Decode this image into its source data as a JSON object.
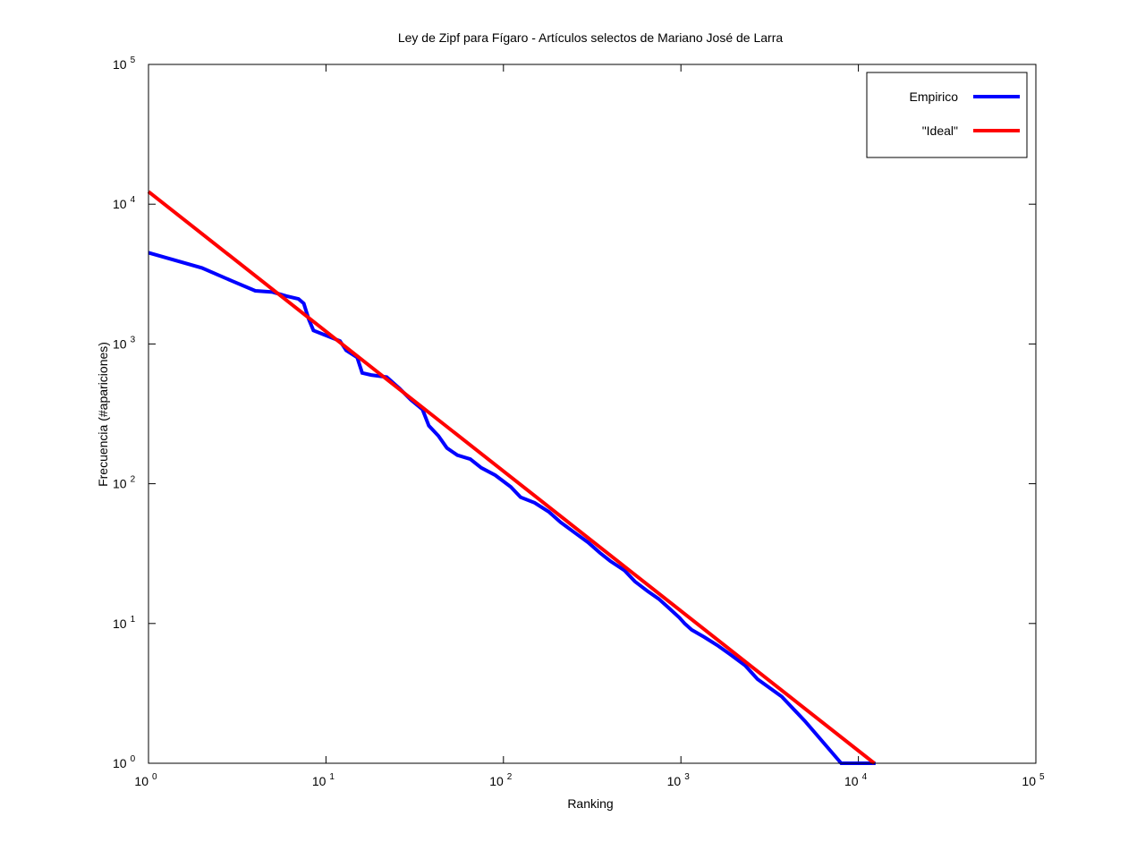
{
  "chart_data": {
    "type": "line",
    "title": "Ley de Zipf para Fígaro - Artículos selectos de Mariano José de Larra",
    "xlabel": "Ranking",
    "ylabel": "Frecuencia (#apariciones)",
    "xscale": "log",
    "yscale": "log",
    "xlim": [
      1,
      100000
    ],
    "ylim": [
      1,
      100000
    ],
    "x_ticks": [
      {
        "base": "10",
        "exp": "0"
      },
      {
        "base": "10",
        "exp": "1"
      },
      {
        "base": "10",
        "exp": "2"
      },
      {
        "base": "10",
        "exp": "3"
      },
      {
        "base": "10",
        "exp": "4"
      },
      {
        "base": "10",
        "exp": "5"
      }
    ],
    "y_ticks": [
      {
        "base": "10",
        "exp": "0"
      },
      {
        "base": "10",
        "exp": "1"
      },
      {
        "base": "10",
        "exp": "2"
      },
      {
        "base": "10",
        "exp": "3"
      },
      {
        "base": "10",
        "exp": "4"
      },
      {
        "base": "10",
        "exp": "5"
      }
    ],
    "legend_position": "top-right",
    "series": [
      {
        "name": "Empirico",
        "color": "#0000ff",
        "step": true,
        "points": [
          [
            1,
            4500
          ],
          [
            2,
            3500
          ],
          [
            3,
            2800
          ],
          [
            4,
            2400
          ],
          [
            5,
            2350
          ],
          [
            6,
            2200
          ],
          [
            7,
            2100
          ],
          [
            7.5,
            1950
          ],
          [
            8,
            1500
          ],
          [
            8.5,
            1250
          ],
          [
            10,
            1150
          ],
          [
            12,
            1050
          ],
          [
            13,
            900
          ],
          [
            15,
            800
          ],
          [
            16,
            620
          ],
          [
            18,
            600
          ],
          [
            22,
            580
          ],
          [
            26,
            480
          ],
          [
            30,
            400
          ],
          [
            35,
            340
          ],
          [
            38,
            260
          ],
          [
            43,
            220
          ],
          [
            48,
            180
          ],
          [
            55,
            160
          ],
          [
            65,
            150
          ],
          [
            75,
            130
          ],
          [
            90,
            115
          ],
          [
            110,
            95
          ],
          [
            125,
            80
          ],
          [
            150,
            73
          ],
          [
            180,
            63
          ],
          [
            210,
            53
          ],
          [
            250,
            45
          ],
          [
            300,
            38
          ],
          [
            350,
            32
          ],
          [
            400,
            28
          ],
          [
            480,
            24
          ],
          [
            550,
            20
          ],
          [
            650,
            17
          ],
          [
            750,
            15
          ],
          [
            850,
            13
          ],
          [
            980,
            11
          ],
          [
            1050,
            10
          ],
          [
            1150,
            9
          ],
          [
            1350,
            8
          ],
          [
            1600,
            7
          ],
          [
            1900,
            6
          ],
          [
            2300,
            5
          ],
          [
            2700,
            4
          ],
          [
            3700,
            3
          ],
          [
            5000,
            2
          ],
          [
            8000,
            1
          ],
          [
            12500,
            1
          ]
        ]
      },
      {
        "name": "\"Ideal\"",
        "color": "#ff0000",
        "step": false,
        "points": [
          [
            1,
            12300
          ],
          [
            12300,
            1
          ]
        ]
      }
    ]
  }
}
